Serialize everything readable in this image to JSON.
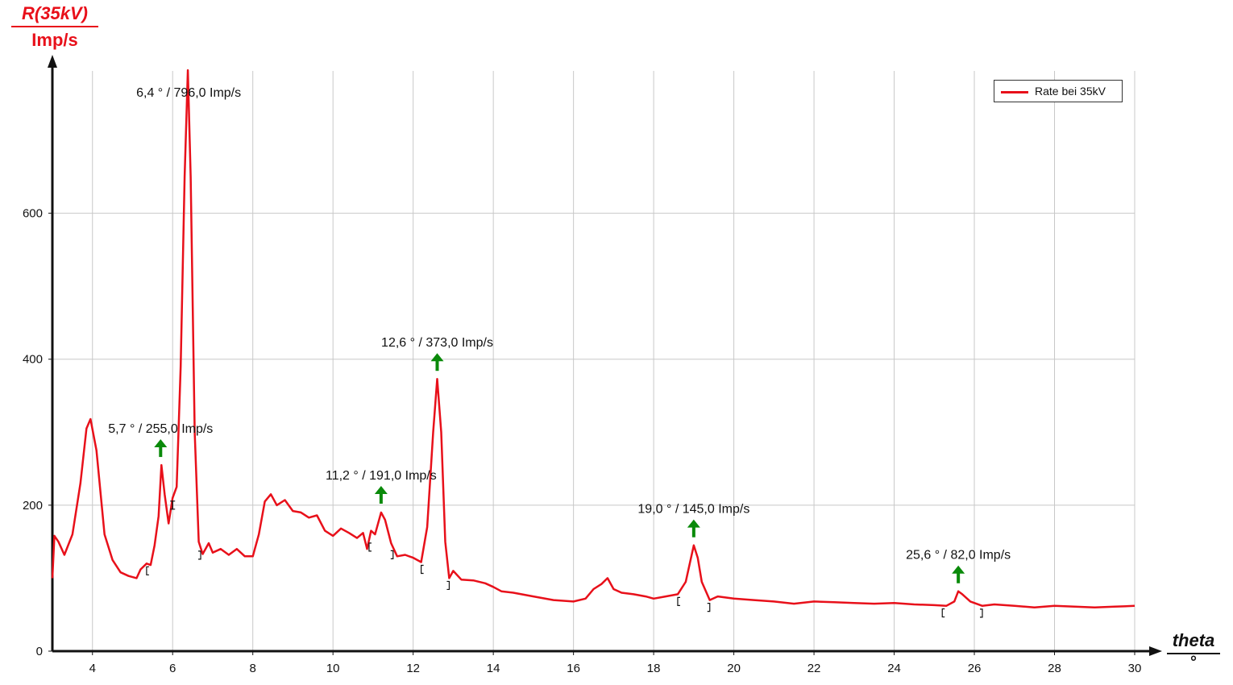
{
  "chart_data": {
    "type": "line",
    "ylabel": "R(35kV)",
    "yunit": "Imp/s",
    "xlabel": "theta",
    "xunit": "°",
    "xlim": [
      3,
      30
    ],
    "ylim": [
      0,
      795
    ],
    "x_ticks": [
      4,
      6,
      8,
      10,
      12,
      14,
      16,
      18,
      20,
      22,
      24,
      26,
      28,
      30
    ],
    "y_ticks": [
      0,
      200,
      400,
      600
    ],
    "grid": true,
    "legend_position": "top-right",
    "series": [
      {
        "name": "Rate bei 35kV",
        "color": "#e8101a",
        "points": [
          [
            3.0,
            100
          ],
          [
            3.05,
            158
          ],
          [
            3.15,
            150
          ],
          [
            3.3,
            132
          ],
          [
            3.5,
            160
          ],
          [
            3.7,
            230
          ],
          [
            3.85,
            305
          ],
          [
            3.95,
            318
          ],
          [
            4.1,
            275
          ],
          [
            4.3,
            160
          ],
          [
            4.5,
            125
          ],
          [
            4.7,
            108
          ],
          [
            4.9,
            103
          ],
          [
            5.1,
            100
          ],
          [
            5.2,
            112
          ],
          [
            5.35,
            120
          ],
          [
            5.45,
            118
          ],
          [
            5.55,
            145
          ],
          [
            5.65,
            185
          ],
          [
            5.72,
            255
          ],
          [
            5.8,
            215
          ],
          [
            5.9,
            175
          ],
          [
            6.0,
            210
          ],
          [
            6.1,
            225
          ],
          [
            6.2,
            390
          ],
          [
            6.3,
            650
          ],
          [
            6.38,
            796
          ],
          [
            6.45,
            650
          ],
          [
            6.55,
            300
          ],
          [
            6.65,
            150
          ],
          [
            6.75,
            133
          ],
          [
            6.9,
            148
          ],
          [
            7.0,
            135
          ],
          [
            7.2,
            140
          ],
          [
            7.4,
            132
          ],
          [
            7.6,
            140
          ],
          [
            7.8,
            130
          ],
          [
            8.0,
            130
          ],
          [
            8.15,
            160
          ],
          [
            8.3,
            205
          ],
          [
            8.45,
            215
          ],
          [
            8.6,
            200
          ],
          [
            8.8,
            207
          ],
          [
            9.0,
            192
          ],
          [
            9.2,
            190
          ],
          [
            9.4,
            183
          ],
          [
            9.6,
            186
          ],
          [
            9.8,
            165
          ],
          [
            10.0,
            158
          ],
          [
            10.2,
            168
          ],
          [
            10.4,
            162
          ],
          [
            10.6,
            155
          ],
          [
            10.75,
            162
          ],
          [
            10.85,
            140
          ],
          [
            10.95,
            165
          ],
          [
            11.05,
            160
          ],
          [
            11.2,
            190
          ],
          [
            11.3,
            180
          ],
          [
            11.45,
            148
          ],
          [
            11.6,
            130
          ],
          [
            11.8,
            132
          ],
          [
            12.0,
            128
          ],
          [
            12.2,
            122
          ],
          [
            12.35,
            170
          ],
          [
            12.5,
            300
          ],
          [
            12.6,
            373
          ],
          [
            12.7,
            300
          ],
          [
            12.8,
            150
          ],
          [
            12.9,
            100
          ],
          [
            13.0,
            110
          ],
          [
            13.2,
            98
          ],
          [
            13.5,
            97
          ],
          [
            13.8,
            93
          ],
          [
            14.0,
            88
          ],
          [
            14.2,
            82
          ],
          [
            14.5,
            80
          ],
          [
            15.0,
            75
          ],
          [
            15.5,
            70
          ],
          [
            16.0,
            68
          ],
          [
            16.3,
            72
          ],
          [
            16.5,
            85
          ],
          [
            16.7,
            92
          ],
          [
            16.85,
            100
          ],
          [
            17.0,
            85
          ],
          [
            17.2,
            80
          ],
          [
            17.5,
            78
          ],
          [
            17.8,
            75
          ],
          [
            18.0,
            72
          ],
          [
            18.3,
            75
          ],
          [
            18.6,
            78
          ],
          [
            18.8,
            95
          ],
          [
            19.0,
            145
          ],
          [
            19.1,
            128
          ],
          [
            19.2,
            95
          ],
          [
            19.4,
            70
          ],
          [
            19.6,
            75
          ],
          [
            20.0,
            72
          ],
          [
            20.5,
            70
          ],
          [
            21.0,
            68
          ],
          [
            21.5,
            65
          ],
          [
            22.0,
            68
          ],
          [
            22.5,
            67
          ],
          [
            23.0,
            66
          ],
          [
            23.5,
            65
          ],
          [
            24.0,
            66
          ],
          [
            24.5,
            64
          ],
          [
            25.0,
            63
          ],
          [
            25.3,
            62
          ],
          [
            25.5,
            68
          ],
          [
            25.6,
            82
          ],
          [
            25.7,
            78
          ],
          [
            25.9,
            68
          ],
          [
            26.2,
            62
          ],
          [
            26.5,
            64
          ],
          [
            27.0,
            62
          ],
          [
            27.5,
            60
          ],
          [
            28.0,
            62
          ],
          [
            28.5,
            61
          ],
          [
            29.0,
            60
          ],
          [
            29.5,
            61
          ],
          [
            30.0,
            62
          ]
        ]
      }
    ],
    "peaks": [
      {
        "x": 5.7,
        "y": 255,
        "label": "5,7 ° / 255,0 Imp/s",
        "range": [
          5.35,
          6.0
        ]
      },
      {
        "x": 6.4,
        "y": 796,
        "label": "6,4 ° / 796,0 Imp/s",
        "range": [
          6.0,
          6.7
        ]
      },
      {
        "x": 11.2,
        "y": 191,
        "label": "11,2 ° / 191,0 Imp/s",
        "range": [
          10.9,
          11.5
        ]
      },
      {
        "x": 12.6,
        "y": 373,
        "label": "12,6 ° / 373,0 Imp/s",
        "range": [
          12.2,
          12.9
        ]
      },
      {
        "x": 19.0,
        "y": 145,
        "label": "19,0 ° / 145,0 Imp/s",
        "range": [
          18.6,
          19.4
        ]
      },
      {
        "x": 25.6,
        "y": 82,
        "label": "25,6 ° / 82,0 Imp/s",
        "range": [
          25.2,
          26.2
        ]
      }
    ]
  }
}
